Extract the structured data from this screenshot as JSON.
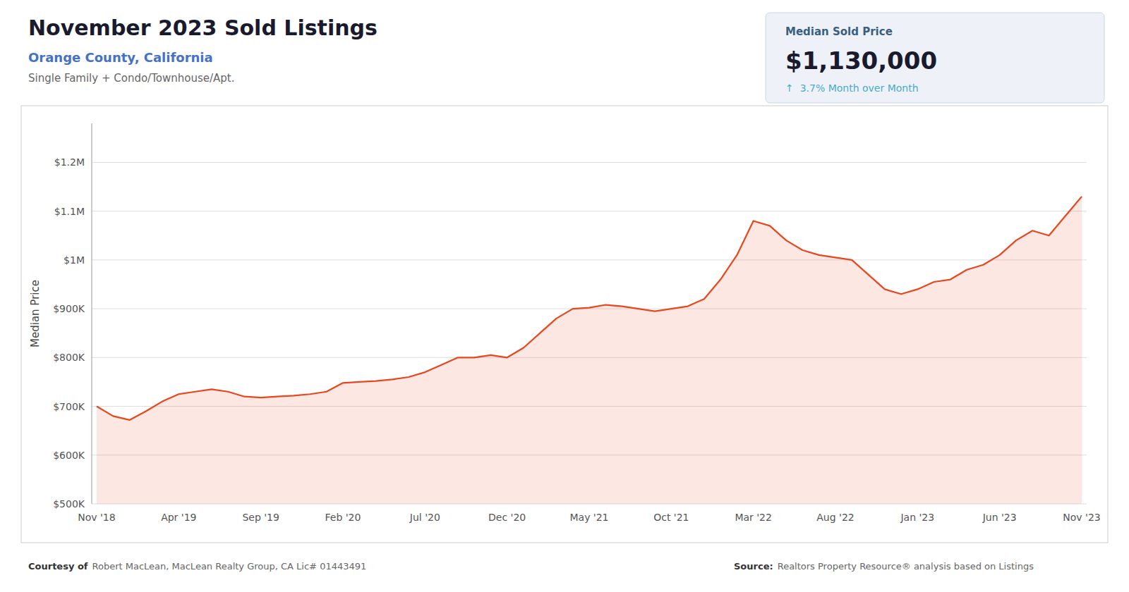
{
  "chart_data": {
    "type": "area",
    "title": "November 2023 Sold Listings",
    "subtitle": "Orange County, California",
    "annotations": [
      "Single Family + Condo/Townhouse/Apt.",
      "Median Sold Price",
      "$1,130,000",
      "↑  3.7% Month over Month",
      "Courtesy of",
      "Robert MacLean, MacLean Realty Group, CA Lic# 01443491",
      "Source:",
      "Realtors Property Resource® analysis based on Listings"
    ],
    "y_label": "Median Price",
    "color": "#e8471e",
    "grid": true,
    "categories": [
      "Nov '18",
      null,
      null,
      null,
      null,
      "Apr '19",
      null,
      null,
      null,
      null,
      "Sep '19",
      null,
      null,
      null,
      null,
      "Feb '20",
      null,
      null,
      null,
      null,
      "Jul '20",
      null,
      null,
      null,
      null,
      "Dec '20",
      null,
      null,
      null,
      null,
      "May '21",
      null,
      null,
      null,
      null,
      "Oct '21",
      null,
      null,
      null,
      null,
      "Mar '22",
      null,
      null,
      null,
      null,
      "Aug '22",
      null,
      null,
      null,
      null,
      "Jan '23",
      null,
      null,
      null,
      null,
      "Jun '23",
      null,
      null,
      null,
      null,
      "Nov '23"
    ],
    "values": [
      700000,
      680000,
      672000,
      690000,
      710000,
      725000,
      730000,
      735000,
      730000,
      720000,
      718000,
      720000,
      722000,
      725000,
      730000,
      748000,
      750000,
      752000,
      755000,
      760000,
      770000,
      785000,
      800000,
      800000,
      805000,
      800000,
      820000,
      850000,
      880000,
      900000,
      902000,
      908000,
      905000,
      900000,
      895000,
      900000,
      905000,
      920000,
      960000,
      1010000,
      1080000,
      1070000,
      1040000,
      1020000,
      1010000,
      1005000,
      1000000,
      970000,
      940000,
      930000,
      940000,
      955000,
      960000,
      980000,
      990000,
      1010000,
      1040000,
      1060000,
      1050000,
      1090000,
      1130000
    ],
    "ylim": [
      500000,
      1280000
    ],
    "yticks": [
      {
        "value": 500000,
        "label": "$500K"
      },
      {
        "value": 600000,
        "label": "$600K"
      },
      {
        "value": 700000,
        "label": "$700K"
      },
      {
        "value": 800000,
        "label": "$800K"
      },
      {
        "value": 900000,
        "label": "$900K"
      },
      {
        "value": 1000000,
        "label": "$1M"
      },
      {
        "value": 1100000,
        "label": "$1.1M"
      },
      {
        "value": 1200000,
        "label": "$1.2M"
      }
    ]
  }
}
